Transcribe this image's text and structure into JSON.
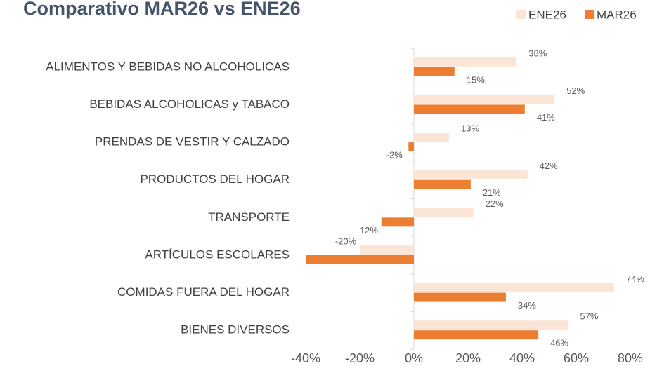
{
  "chart_data": {
    "type": "barh",
    "title": "Comparativo MAR26 vs ENE26",
    "categories": [
      "ALIMENTOS Y BEBIDAS NO ALCOHOLICAS",
      "BEBIDAS ALCOHOLICAS y TABACO",
      "PRENDAS DE VESTIR Y CALZADO",
      "PRODUCTOS DEL HOGAR",
      "TRANSPORTE",
      "ARTÍCULOS ESCOLARES",
      "COMIDAS FUERA DEL HOGAR",
      "BIENES DIVERSOS"
    ],
    "series": [
      {
        "name": "ENE26",
        "color": "#fbe5d6",
        "values": [
          38,
          52,
          13,
          42,
          22,
          -20,
          74,
          57
        ],
        "value_labels": [
          "38%",
          "52%",
          "13%",
          "42%",
          "22%",
          "-20%",
          "74%",
          "57%"
        ]
      },
      {
        "name": "MAR26",
        "color": "#ed7d31",
        "values": [
          15,
          41,
          -2,
          21,
          -12,
          -40,
          34,
          46
        ],
        "value_labels": [
          "15%",
          "41%",
          "-2%",
          "21%",
          "-12%",
          null,
          "34%",
          "46%"
        ]
      }
    ],
    "xlim": [
      -40,
      80
    ],
    "xticks": [
      {
        "value": -40,
        "label": "-40%"
      },
      {
        "value": -20,
        "label": "-20%"
      },
      {
        "value": 0,
        "label": "0%"
      },
      {
        "value": 20,
        "label": "20%"
      },
      {
        "value": 40,
        "label": "40%"
      },
      {
        "value": 60,
        "label": "60%"
      },
      {
        "value": 80,
        "label": "80%"
      }
    ],
    "legend": "top-right"
  }
}
